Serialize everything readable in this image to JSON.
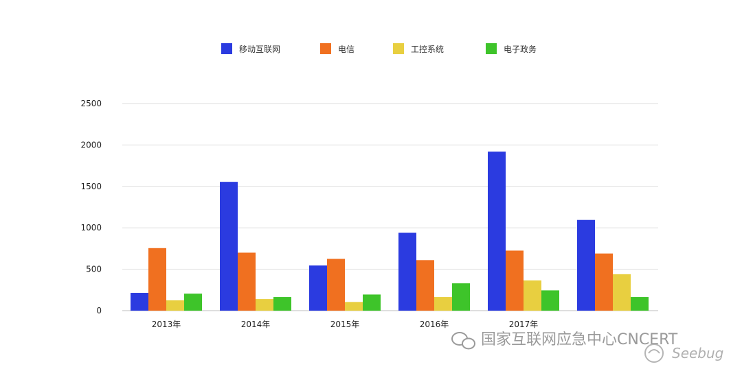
{
  "chart_data": {
    "type": "bar",
    "categories": [
      "2013年",
      "2014年",
      "2015年",
      "2016年",
      "2017年",
      ""
    ],
    "series": [
      {
        "name": "移动互联网",
        "color": "#2b3be0",
        "values": [
          215,
          1555,
          545,
          940,
          1920,
          1095
        ]
      },
      {
        "name": "电信",
        "color": "#f07020",
        "values": [
          755,
          700,
          625,
          610,
          725,
          690
        ]
      },
      {
        "name": "工控系统",
        "color": "#e8cf40",
        "values": [
          125,
          140,
          105,
          165,
          365,
          440
        ]
      },
      {
        "name": "电子政务",
        "color": "#3ec42a",
        "values": [
          205,
          165,
          195,
          330,
          245,
          165
        ]
      }
    ],
    "y_ticks": [
      "0",
      "500",
      "1000",
      "1500",
      "2000",
      "2500"
    ],
    "ylim": [
      0,
      2500
    ],
    "grid": true,
    "legend_position": "top-center",
    "title": "",
    "xlabel": "",
    "ylabel": ""
  },
  "watermark": {
    "text": "国家互联网应急中心CNCERT",
    "sub": "Seebug"
  }
}
